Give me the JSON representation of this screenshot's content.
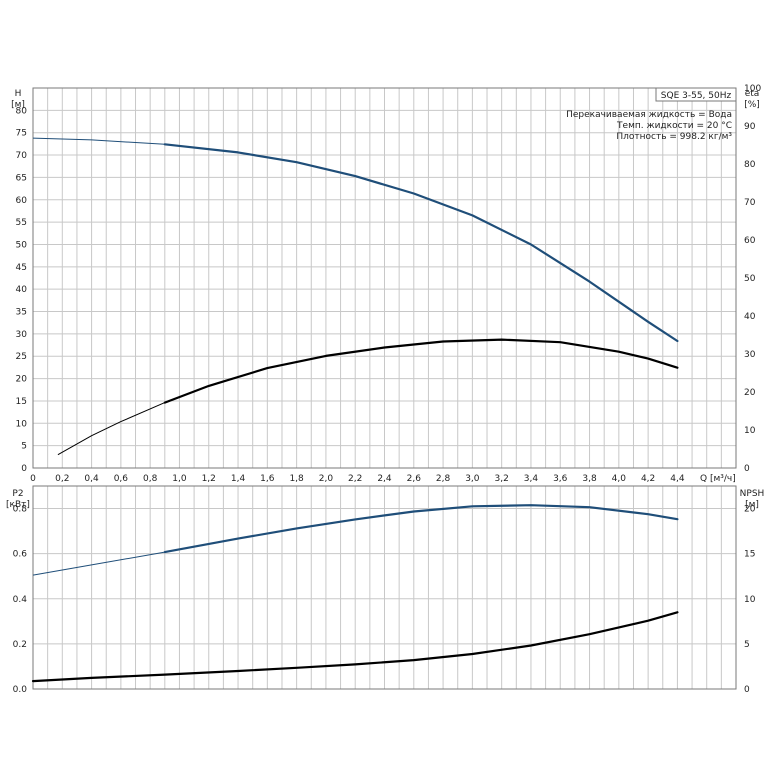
{
  "chart_data": [
    {
      "type": "line",
      "panel": "top",
      "title_box": "SQE 3-55, 50Hz",
      "info_lines": [
        "Перекачиваемая жидкость = Вода",
        "Темп. жидкости = 20 °C",
        "Плотность = 998.2 кг/м³"
      ],
      "xlabel": "Q [м³/ч]",
      "x_ticks": [
        "0",
        "0,2",
        "0,4",
        "0,6",
        "0,8",
        "1,0",
        "1,2",
        "1,4",
        "1,6",
        "1,8",
        "2,0",
        "2,2",
        "2,4",
        "2,6",
        "2,8",
        "3,0",
        "3,2",
        "3,4",
        "3,6",
        "3,8",
        "4,0",
        "4,2",
        "4,4"
      ],
      "xlim": [
        0,
        4.8
      ],
      "ylabel_left": [
        "H",
        "[м]"
      ],
      "ylim_left": [
        0,
        85
      ],
      "y_ticks_left": [
        "0",
        "5",
        "10",
        "15",
        "20",
        "25",
        "30",
        "35",
        "40",
        "45",
        "50",
        "55",
        "60",
        "65",
        "70",
        "75",
        "80"
      ],
      "ylabel_right": [
        "eta",
        "[%]"
      ],
      "ylim_right": [
        0,
        100
      ],
      "y_ticks_right": [
        "0",
        "10",
        "20",
        "30",
        "40",
        "50",
        "60",
        "70",
        "80",
        "90",
        "100"
      ],
      "series": [
        {
          "axis": "left",
          "color": "#1f4e79",
          "x": [
            0,
            0.4,
            0.9,
            1.4,
            1.8,
            2.2,
            2.6,
            3.0,
            3.4,
            3.8,
            4.2,
            4.4
          ],
          "y": [
            73.8,
            73.4,
            72.4,
            70.6,
            68.4,
            65.3,
            61.4,
            56.5,
            50.0,
            41.7,
            32.7,
            28.4
          ],
          "thin_until_x": 0.9
        },
        {
          "axis": "right",
          "color": "#000000",
          "x": [
            0.17,
            0.4,
            0.6,
            0.9,
            1.2,
            1.6,
            2.0,
            2.4,
            2.8,
            3.2,
            3.6,
            4.0,
            4.2,
            4.4
          ],
          "y": [
            3.5,
            8.5,
            12.2,
            17.2,
            21.6,
            26.3,
            29.5,
            31.7,
            33.3,
            33.8,
            33.1,
            30.6,
            28.8,
            26.4
          ],
          "thin_until_x": 0.9
        }
      ]
    },
    {
      "type": "line",
      "panel": "bottom",
      "xlim": [
        0,
        4.8
      ],
      "ylabel_left": [
        "P2",
        "[кВт]"
      ],
      "ylim_left": [
        0,
        0.9
      ],
      "y_ticks_left": [
        "0.0",
        "0.2",
        "0.4",
        "0.6",
        "0.8"
      ],
      "ylabel_right": [
        "NPSH",
        "[м]"
      ],
      "ylim_right": [
        0,
        22.5
      ],
      "y_ticks_right": [
        "0",
        "5",
        "10",
        "15",
        "20"
      ],
      "series": [
        {
          "axis": "left",
          "color": "#1f4e79",
          "x": [
            0,
            0.4,
            0.9,
            1.4,
            1.8,
            2.2,
            2.6,
            3.0,
            3.4,
            3.8,
            4.2,
            4.4
          ],
          "y": [
            0.505,
            0.55,
            0.607,
            0.667,
            0.712,
            0.752,
            0.787,
            0.81,
            0.815,
            0.806,
            0.775,
            0.753
          ],
          "thin_until_x": 0.9
        },
        {
          "axis": "left",
          "color": "#000000",
          "x": [
            0,
            0.4,
            0.9,
            1.4,
            1.8,
            2.2,
            2.6,
            3.0,
            3.4,
            3.8,
            4.2,
            4.4
          ],
          "y": [
            0.035,
            0.049,
            0.064,
            0.08,
            0.094,
            0.109,
            0.128,
            0.155,
            0.193,
            0.243,
            0.303,
            0.34
          ],
          "thin_until_x": 0
        }
      ]
    }
  ]
}
